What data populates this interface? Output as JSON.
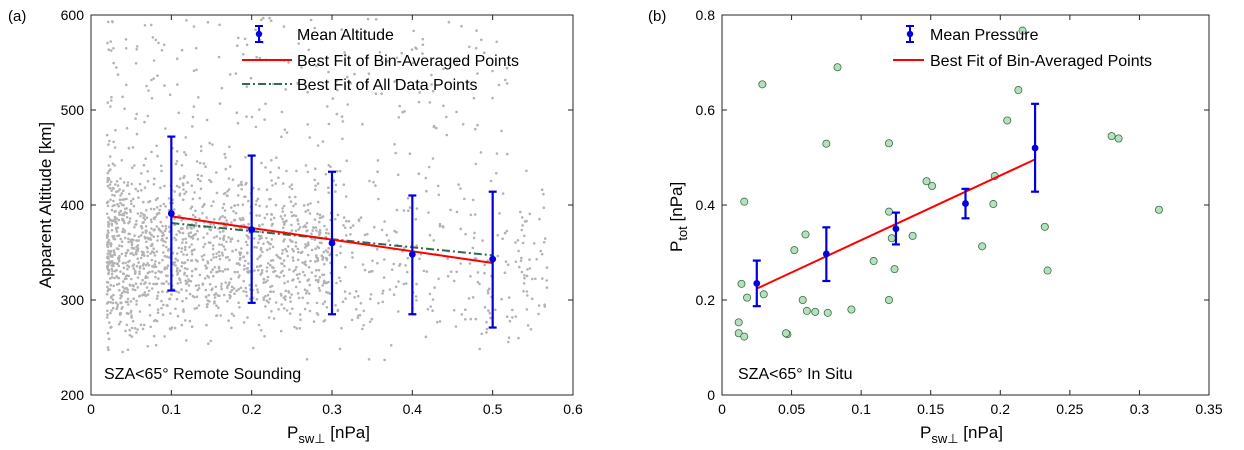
{
  "colors": {
    "scatter_gray": "#b3b3b3",
    "mean_blue": "#0000dd",
    "fit_red": "#ff0000",
    "fit_green": "#2e6b4f",
    "insitu_fill": "#b5e0bd",
    "insitu_edge": "#3c6b48"
  },
  "chart_data": [
    {
      "type": "scatter",
      "panel_label": "(a)",
      "xlabel_main": "P",
      "xlabel_sub": "sw⊥",
      "xlabel_unit": " [nPa]",
      "ylabel": "Apparent Altitude [km]",
      "xlim": [
        0,
        0.6
      ],
      "ylim": [
        200,
        600
      ],
      "xticks": [
        "0",
        "0.1",
        "0.2",
        "0.3",
        "0.4",
        "0.5",
        "0.6"
      ],
      "xtick_values": [
        0,
        0.1,
        0.2,
        0.3,
        0.4,
        0.5,
        0.6
      ],
      "yticks": [
        "200",
        "300",
        "400",
        "500",
        "600"
      ],
      "ytick_values": [
        200,
        300,
        400,
        500,
        600
      ],
      "grid": false,
      "annotation": "SZA<65°  Remote Sounding",
      "legend": {
        "placement": "top-right",
        "entries": [
          "Mean Altitude",
          "Best Fit of Bin-Averaged Points",
          "Best Fit of All Data Points"
        ]
      },
      "mean_points": {
        "name": "Mean Altitude",
        "x": [
          0.1,
          0.2,
          0.3,
          0.4,
          0.5
        ],
        "y": [
          391,
          374,
          360,
          348,
          343
        ],
        "lower": [
          310,
          297,
          285,
          285,
          271
        ],
        "upper": [
          472,
          452,
          435,
          410,
          414
        ]
      },
      "fit_binned": {
        "name": "Best Fit of Bin-Averaged Points",
        "x": [
          0.1,
          0.5
        ],
        "y": [
          388,
          339
        ]
      },
      "fit_all": {
        "name": "Best Fit of All Data Points",
        "x": [
          0.1,
          0.5
        ],
        "y": [
          381,
          347
        ]
      },
      "scatter_all_points": "approximately 2000 gray dots, dense at x=0.02–0.3, y=260–460; sparse above 480 km"
    },
    {
      "type": "scatter",
      "panel_label": "(b)",
      "xlabel_main": "P",
      "xlabel_sub": "sw⊥",
      "xlabel_unit": " [nPa]",
      "ylabel_main": "P",
      "ylabel_sub": "tot",
      "ylabel_unit": " [nPa]",
      "xlim": [
        0,
        0.35
      ],
      "ylim": [
        0,
        0.8
      ],
      "xticks": [
        "0",
        "0.05",
        "0.1",
        "0.15",
        "0.2",
        "0.25",
        "0.3",
        "0.35"
      ],
      "xtick_values": [
        0,
        0.05,
        0.1,
        0.15,
        0.2,
        0.25,
        0.3,
        0.35
      ],
      "yticks": [
        "0",
        "0.2",
        "0.4",
        "0.6",
        "0.8"
      ],
      "ytick_values": [
        0,
        0.2,
        0.4,
        0.6,
        0.8
      ],
      "grid": false,
      "annotation": "SZA<65°  In Situ",
      "legend": {
        "placement": "top-right",
        "entries": [
          "Mean Pressure",
          "Best Fit of Bin-Averaged Points"
        ]
      },
      "mean_points": {
        "name": "Mean Pressure",
        "x": [
          0.025,
          0.075,
          0.125,
          0.175,
          0.225
        ],
        "y": [
          0.235,
          0.297,
          0.35,
          0.403,
          0.52
        ],
        "lower": [
          0.187,
          0.24,
          0.317,
          0.372,
          0.428
        ],
        "upper": [
          0.283,
          0.353,
          0.384,
          0.434,
          0.613
        ]
      },
      "fit_binned": {
        "name": "Best Fit of Bin-Averaged Points",
        "x": [
          0.025,
          0.225
        ],
        "y": [
          0.224,
          0.496
        ]
      },
      "insitu_points": {
        "x": [
          0.029,
          0.083,
          0.216,
          0.213,
          0.075,
          0.12,
          0.205,
          0.28,
          0.285,
          0.016,
          0.014,
          0.047,
          0.018,
          0.03,
          0.012,
          0.012,
          0.016,
          0.06,
          0.052,
          0.058,
          0.061,
          0.067,
          0.076,
          0.046,
          0.109,
          0.12,
          0.122,
          0.12,
          0.124,
          0.137,
          0.147,
          0.151,
          0.196,
          0.195,
          0.232,
          0.234,
          0.187,
          0.314,
          0.093
        ],
        "y": [
          0.654,
          0.69,
          0.767,
          0.642,
          0.529,
          0.53,
          0.578,
          0.545,
          0.54,
          0.407,
          0.234,
          0.128,
          0.205,
          0.212,
          0.13,
          0.153,
          0.123,
          0.338,
          0.305,
          0.2,
          0.177,
          0.175,
          0.173,
          0.13,
          0.282,
          0.386,
          0.33,
          0.2,
          0.265,
          0.335,
          0.45,
          0.44,
          0.461,
          0.402,
          0.354,
          0.262,
          0.313,
          0.39,
          0.18
        ]
      }
    }
  ]
}
